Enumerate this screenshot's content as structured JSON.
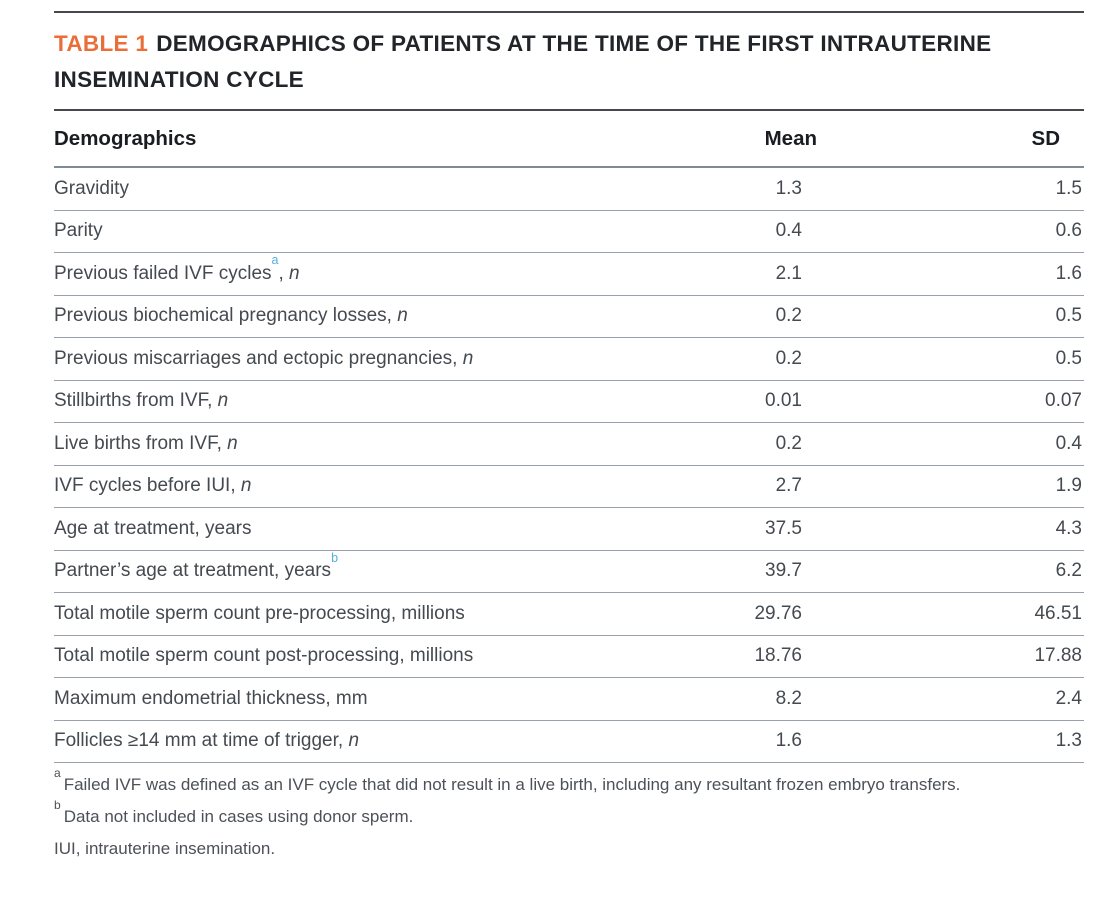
{
  "colors": {
    "accent_orange": "#EB6E38",
    "superscript_blue": "#56AEDF",
    "row_rule_gray": "#98A1AB",
    "dark_rule": "#45494D",
    "text_dark": "#212428",
    "text_body": "#454A50"
  },
  "title": {
    "label": "TABLE 1",
    "text": "DEMOGRAPHICS OF PATIENTS AT THE TIME OF THE FIRST INTRAUTERINE INSEMINATION CYCLE"
  },
  "table": {
    "headers": {
      "demographics": "Demographics",
      "mean": "Mean",
      "sd": "SD"
    },
    "rows": [
      {
        "pre": "Gravidity",
        "sup": "",
        "post": "",
        "italic": "",
        "mean": "1.3",
        "sd": "1.5"
      },
      {
        "pre": "Parity",
        "sup": "",
        "post": "",
        "italic": "",
        "mean": "0.4",
        "sd": "0.6"
      },
      {
        "pre": "Previous failed IVF cycles",
        "sup": "a",
        "post": ", ",
        "italic": "n",
        "mean": "2.1",
        "sd": "1.6"
      },
      {
        "pre": "Previous biochemical pregnancy losses, ",
        "sup": "",
        "post": "",
        "italic": "n",
        "mean": "0.2",
        "sd": "0.5"
      },
      {
        "pre": "Previous miscarriages and ectopic pregnancies, ",
        "sup": "",
        "post": "",
        "italic": "n",
        "mean": "0.2",
        "sd": "0.5"
      },
      {
        "pre": "Stillbirths from IVF, ",
        "sup": "",
        "post": "",
        "italic": "n",
        "mean": "0.01",
        "sd": "0.07"
      },
      {
        "pre": "Live births from IVF, ",
        "sup": "",
        "post": "",
        "italic": "n",
        "mean": "0.2",
        "sd": "0.4"
      },
      {
        "pre": "IVF cycles before IUI, ",
        "sup": "",
        "post": "",
        "italic": "n",
        "mean": "2.7",
        "sd": "1.9"
      },
      {
        "pre": "Age at treatment, years",
        "sup": "",
        "post": "",
        "italic": "",
        "mean": "37.5",
        "sd": "4.3"
      },
      {
        "pre": "Partner’s age at treatment, years",
        "sup": "b",
        "post": "",
        "italic": "",
        "mean": "39.7",
        "sd": "6.2"
      },
      {
        "pre": "Total motile sperm count pre-processing, millions",
        "sup": "",
        "post": "",
        "italic": "",
        "mean": "29.76",
        "sd": "46.51"
      },
      {
        "pre": "Total motile sperm count post-processing, millions",
        "sup": "",
        "post": "",
        "italic": "",
        "mean": "18.76",
        "sd": "17.88"
      },
      {
        "pre": "Maximum endometrial thickness, mm",
        "sup": "",
        "post": "",
        "italic": "",
        "mean": "8.2",
        "sd": "2.4"
      },
      {
        "pre": "Follicles ≥14 mm at time of trigger, ",
        "sup": "",
        "post": "",
        "italic": "n",
        "mean": "1.6",
        "sd": "1.3"
      }
    ]
  },
  "footnotes": [
    {
      "sup": "a",
      "text": "Failed IVF was defined as an IVF cycle that did not result in a live birth, including any resultant frozen embryo transfers."
    },
    {
      "sup": "b",
      "text": "Data not included in cases using donor sperm."
    },
    {
      "sup": "",
      "text": "IUI, intrauterine insemination."
    }
  ]
}
